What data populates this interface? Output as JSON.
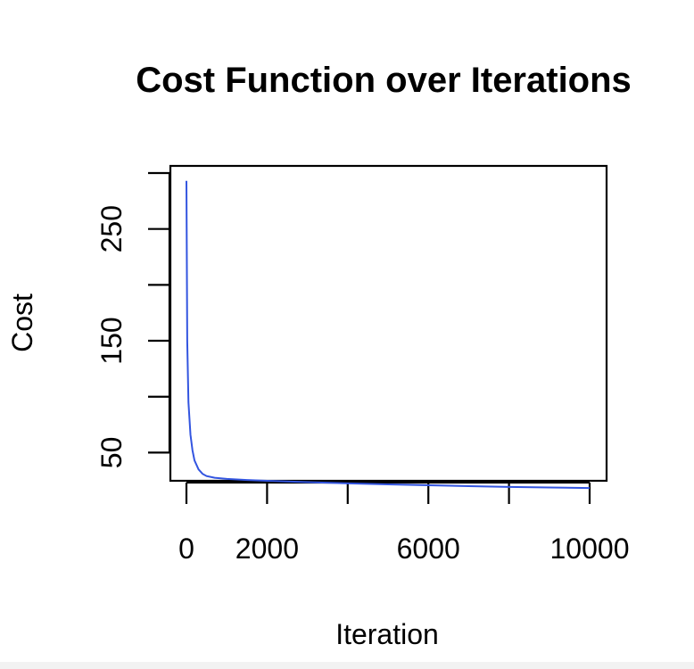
{
  "chart_data": {
    "type": "line",
    "title": "Cost Function over Iterations",
    "xlabel": "Iteration",
    "ylabel": "Cost",
    "xlim": [
      0,
      10000
    ],
    "ylim": [
      20,
      300
    ],
    "x_ticks": [
      0,
      2000,
      4000,
      6000,
      8000,
      10000
    ],
    "x_tick_labels": [
      "0",
      "2000",
      "",
      "6000",
      "",
      "10000"
    ],
    "y_ticks": [
      50,
      100,
      150,
      200,
      250,
      300
    ],
    "y_tick_labels": [
      "50",
      "",
      "150",
      "",
      "250",
      ""
    ],
    "grid": false,
    "series": [
      {
        "color": "#3355e0",
        "x": [
          0,
          20,
          50,
          100,
          150,
          200,
          300,
          400,
          500,
          700,
          1000,
          1500,
          2000,
          3000,
          4000,
          5000,
          6000,
          7000,
          8000,
          9000,
          10000
        ],
        "y": [
          293,
          150,
          95,
          66,
          52,
          43,
          35,
          31,
          29,
          27.5,
          26.5,
          25.5,
          24.8,
          23.6,
          22.5,
          21.6,
          20.8,
          20,
          19.3,
          18.8,
          18.3
        ]
      }
    ]
  }
}
